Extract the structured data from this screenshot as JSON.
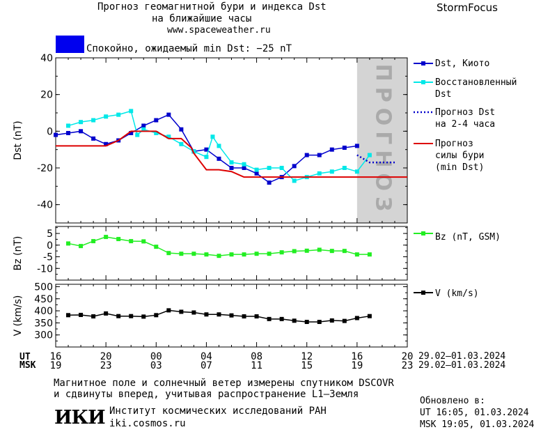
{
  "header": {
    "title_line1": "Прогноз геомагнитной бури и индекса Dst",
    "title_line2": "на ближайшие часы",
    "url": "www.spaceweather.ru",
    "brand": "StormFocus"
  },
  "status": {
    "text": "Спокойно, ожидаемый min Dst: −25 nT",
    "color": "#0000ee"
  },
  "forecast_watermark": "ПРОГНОЗ",
  "chart_data": [
    {
      "type": "line",
      "ylabel": "Dst (nT)",
      "ylim": [
        -50,
        40
      ],
      "yticks": [
        40,
        20,
        0,
        -20,
        -40
      ],
      "x_hours_ut_start": 16,
      "series": [
        {
          "name": "Dst, Киото",
          "color": "#0000cc",
          "marker": "square",
          "x": [
            16,
            17,
            18,
            19,
            20,
            21,
            22,
            23,
            24,
            25,
            26,
            27,
            28,
            29,
            30,
            31,
            32,
            33,
            34,
            35,
            36,
            37,
            38,
            39,
            40
          ],
          "values": [
            -2,
            -1,
            0,
            -4,
            -7,
            -5,
            -1,
            3,
            6,
            9,
            1,
            -11,
            -10,
            -15,
            -20,
            -20,
            -23,
            -28,
            -25,
            -19,
            -13,
            -13,
            -10,
            -9,
            -8
          ]
        },
        {
          "name": "Восстановленный Dst",
          "color": "#00e8e8",
          "marker": "square",
          "x": [
            17,
            18,
            19,
            20,
            21,
            22,
            22.5,
            23,
            24,
            25,
            26,
            27,
            28,
            28.5,
            29,
            30,
            31,
            32,
            33,
            34,
            35,
            36,
            37,
            38,
            39,
            40,
            41
          ],
          "values": [
            3,
            5,
            6,
            8,
            9,
            11,
            -2,
            1,
            -1,
            -3,
            -7,
            -11,
            -14,
            -3,
            -8,
            -17,
            -18,
            -21,
            -20,
            -20,
            -27,
            -25,
            -23,
            -22,
            -20,
            -22,
            -13
          ]
        },
        {
          "name": "Прогноз Dst на 2–4 часа",
          "color": "#0000cc",
          "style": "dotted",
          "x": [
            40,
            41,
            42,
            43
          ],
          "values": [
            -13,
            -17,
            -17,
            -17
          ]
        },
        {
          "name": "Прогноз силы бури (min Dst)",
          "color": "#dd0000",
          "style": "step",
          "x": [
            16,
            20,
            21,
            22,
            23,
            24,
            25,
            26,
            26.8,
            27,
            28,
            29,
            30,
            31,
            32,
            44
          ],
          "values": [
            -8,
            -8,
            -5,
            0,
            0,
            0,
            -4,
            -4,
            -9,
            -12,
            -21,
            -21,
            -22,
            -25,
            -25,
            -25
          ]
        }
      ],
      "forecast_zone_start": 40
    },
    {
      "type": "line",
      "ylabel": "Bz (nT)",
      "ylim": [
        -15,
        8
      ],
      "yticks": [
        5,
        0,
        -5,
        -10
      ],
      "series": [
        {
          "name": "Bz (nT, GSM)",
          "color": "#22ee22",
          "marker": "square",
          "x": [
            17,
            18,
            19,
            20,
            21,
            22,
            23,
            24,
            25,
            26,
            27,
            28,
            29,
            30,
            31,
            32,
            33,
            34,
            35,
            36,
            37,
            38,
            39,
            40,
            41
          ],
          "values": [
            0.7,
            -0.4,
            1.7,
            3.5,
            2.6,
            1.7,
            1.6,
            -0.7,
            -3.4,
            -3.7,
            -3.7,
            -4.0,
            -4.6,
            -4.0,
            -4.0,
            -3.7,
            -3.7,
            -3.1,
            -2.6,
            -2.4,
            -2.0,
            -2.5,
            -2.5,
            -4.0,
            -4.0
          ]
        }
      ]
    },
    {
      "type": "line",
      "ylabel": "V (km/s)",
      "ylim": [
        250,
        510
      ],
      "yticks": [
        500,
        450,
        400,
        350,
        300
      ],
      "series": [
        {
          "name": "V (km/s)",
          "color": "#000000",
          "marker": "square",
          "x": [
            17,
            18,
            19,
            20,
            21,
            22,
            23,
            24,
            25,
            26,
            27,
            28,
            29,
            30,
            31,
            32,
            33,
            34,
            35,
            36,
            37,
            38,
            39,
            40,
            41
          ],
          "values": [
            382,
            383,
            377,
            389,
            378,
            378,
            376,
            382,
            402,
            396,
            393,
            385,
            385,
            381,
            377,
            377,
            366,
            366,
            359,
            354,
            354,
            360,
            358,
            370,
            378
          ]
        }
      ]
    }
  ],
  "legend": [
    {
      "line1": "Dst, Киото",
      "line2": ""
    },
    {
      "line1": "Восстановленный",
      "line2": "Dst"
    },
    {
      "line1": "Прогноз Dst",
      "line2": "на 2-4 часа"
    },
    {
      "line1": "Прогноз",
      "line2": "силы бури",
      "line3": "(min Dst)"
    }
  ],
  "legend_bz": "Bz (nT, GSM)",
  "legend_v": "V (km/s)",
  "axis": {
    "ut_label": "UT",
    "msk_label": "MSK",
    "ut_ticks": [
      "16",
      "20",
      "00",
      "04",
      "08",
      "12",
      "16",
      "20"
    ],
    "msk_ticks": [
      "19",
      "23",
      "03",
      "07",
      "11",
      "15",
      "19",
      "23"
    ],
    "date_range_ut": "29.02–01.03.2024",
    "date_range_msk": "29.02–01.03.2024"
  },
  "footer": {
    "note_line1": "Магнитное поле и солнечный ветер измерены спутником DSCOVR",
    "note_line2": "и сдвинуты вперед, учитывая распространение L1–Земля",
    "logo": "ИКИ",
    "institute": "Институт космических исследований РАН",
    "site": "iki.cosmos.ru",
    "updated_label": "Обновлено в:",
    "updated_ut": "UT   16:05, 01.03.2024",
    "updated_msk": "MSK 19:05, 01.03.2024"
  }
}
